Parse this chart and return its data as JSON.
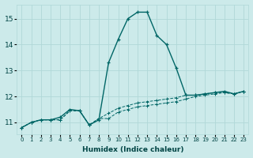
{
  "xlabel": "Humidex (Indice chaleur)",
  "bg_color": "#cceaea",
  "grid_color": "#b0d8d8",
  "line_color": "#006666",
  "xlim": [
    -0.5,
    23.5
  ],
  "ylim": [
    10.55,
    15.55
  ],
  "yticks": [
    11,
    12,
    13,
    14,
    15
  ],
  "xticks": [
    0,
    1,
    2,
    3,
    4,
    5,
    6,
    7,
    8,
    9,
    10,
    11,
    12,
    13,
    14,
    15,
    16,
    17,
    18,
    19,
    20,
    21,
    22,
    23
  ],
  "curve_main_x": [
    0,
    1,
    2,
    3,
    4,
    5,
    6,
    7,
    8,
    9,
    10,
    11,
    12,
    13,
    14,
    15,
    16,
    17,
    18,
    19,
    20,
    21,
    22,
    23
  ],
  "curve_main_y": [
    10.8,
    11.0,
    11.1,
    11.1,
    11.2,
    11.5,
    11.45,
    10.9,
    11.1,
    13.3,
    14.2,
    15.0,
    15.25,
    15.25,
    14.35,
    14.0,
    13.1,
    12.05,
    12.05,
    12.1,
    12.15,
    12.2,
    12.1,
    12.2
  ],
  "curve_low1_x": [
    0,
    1,
    2,
    3,
    4,
    5,
    6,
    7,
    8,
    9,
    10,
    11,
    12,
    13,
    14,
    15,
    16,
    17,
    18,
    19,
    20,
    21,
    22,
    23
  ],
  "curve_low1_y": [
    10.8,
    11.0,
    11.1,
    11.1,
    11.1,
    11.45,
    11.45,
    10.9,
    11.15,
    11.15,
    11.4,
    11.5,
    11.6,
    11.65,
    11.7,
    11.75,
    11.8,
    11.9,
    12.0,
    12.05,
    12.1,
    12.15,
    12.1,
    12.2
  ],
  "curve_low2_x": [
    0,
    1,
    2,
    3,
    4,
    5,
    6,
    7,
    8,
    9,
    10,
    11,
    12,
    13,
    14,
    15,
    16,
    17,
    18,
    19,
    20,
    21,
    22,
    23
  ],
  "curve_low2_y": [
    10.8,
    11.0,
    11.1,
    11.1,
    11.1,
    11.45,
    11.45,
    10.9,
    11.15,
    11.35,
    11.55,
    11.65,
    11.75,
    11.8,
    11.85,
    11.9,
    11.95,
    12.05,
    12.05,
    12.1,
    12.15,
    12.15,
    12.1,
    12.2
  ]
}
